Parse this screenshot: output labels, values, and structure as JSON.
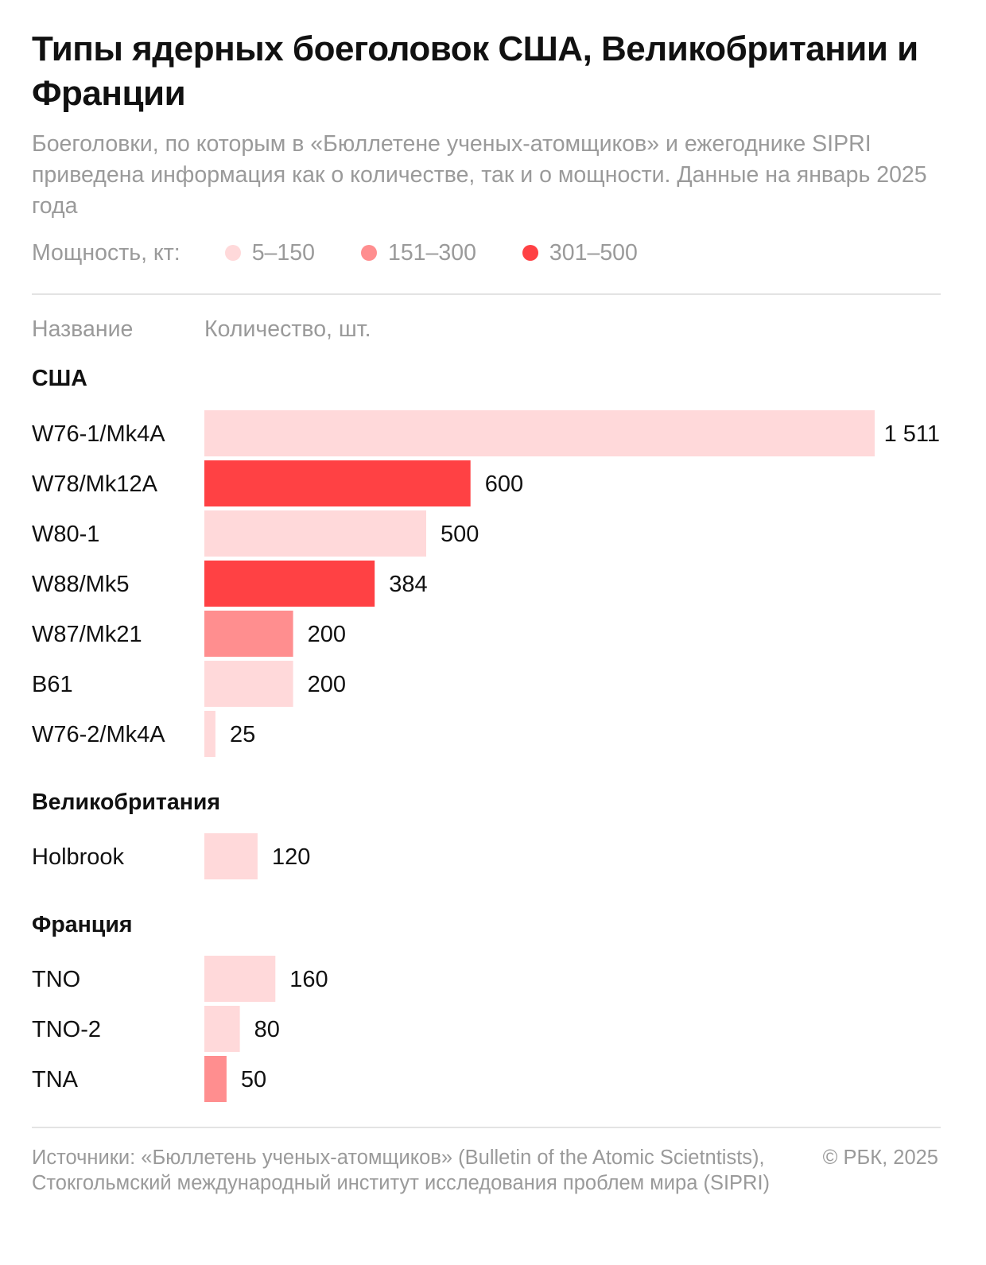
{
  "header": {
    "title": "Типы ядерных боеголовок США, Великобритании и Франции",
    "subtitle": "Боеголовки, по которым в «Бюллетене ученых-атомщиков» и ежегоднике SIPRI приведена информация как о количестве, так и о мощности. Данные на январь 2025 года"
  },
  "legend": {
    "title": "Мощность, кт:",
    "items": [
      {
        "label": "5–150",
        "color": "#ffd9da"
      },
      {
        "label": "151–300",
        "color": "#ff8e8f"
      },
      {
        "label": "301–500",
        "color": "#ff4144"
      }
    ]
  },
  "columns": {
    "name": "Название",
    "count": "Количество, шт."
  },
  "chart_data": {
    "type": "bar",
    "orientation": "horizontal",
    "xlabel": "Количество, шт.",
    "grid": false,
    "legend_placement": "top",
    "groups": [
      {
        "name": "США",
        "items": [
          {
            "label": "W76-1/Mk4A",
            "value": 1511,
            "display": "1 511",
            "yield_class": "5–150"
          },
          {
            "label": "W78/Mk12A",
            "value": 600,
            "display": "600",
            "yield_class": "301–500"
          },
          {
            "label": "W80-1",
            "value": 500,
            "display": "500",
            "yield_class": "5–150"
          },
          {
            "label": "W88/Mk5",
            "value": 384,
            "display": "384",
            "yield_class": "301–500"
          },
          {
            "label": "W87/Mk21",
            "value": 200,
            "display": "200",
            "yield_class": "151–300"
          },
          {
            "label": "B61",
            "value": 200,
            "display": "200",
            "yield_class": "5–150"
          },
          {
            "label": "W76-2/Mk4A",
            "value": 25,
            "display": "25",
            "yield_class": "5–150"
          }
        ]
      },
      {
        "name": "Великобритания",
        "items": [
          {
            "label": "Holbrook",
            "value": 120,
            "display": "120",
            "yield_class": "5–150"
          }
        ]
      },
      {
        "name": "Франция",
        "items": [
          {
            "label": "TNO",
            "value": 160,
            "display": "160",
            "yield_class": "5–150"
          },
          {
            "label": "TNO-2",
            "value": 80,
            "display": "80",
            "yield_class": "5–150"
          },
          {
            "label": "TNA",
            "value": 50,
            "display": "50",
            "yield_class": "151–300"
          }
        ]
      }
    ]
  },
  "footer": {
    "source": "Источники: «Бюллетень ученых-атомщиков» (Bulletin of the Atomic Scietntists), Стокгольмский международный институт исследования проблем мира (SIPRI)",
    "copyright": "© РБК, 2025"
  }
}
